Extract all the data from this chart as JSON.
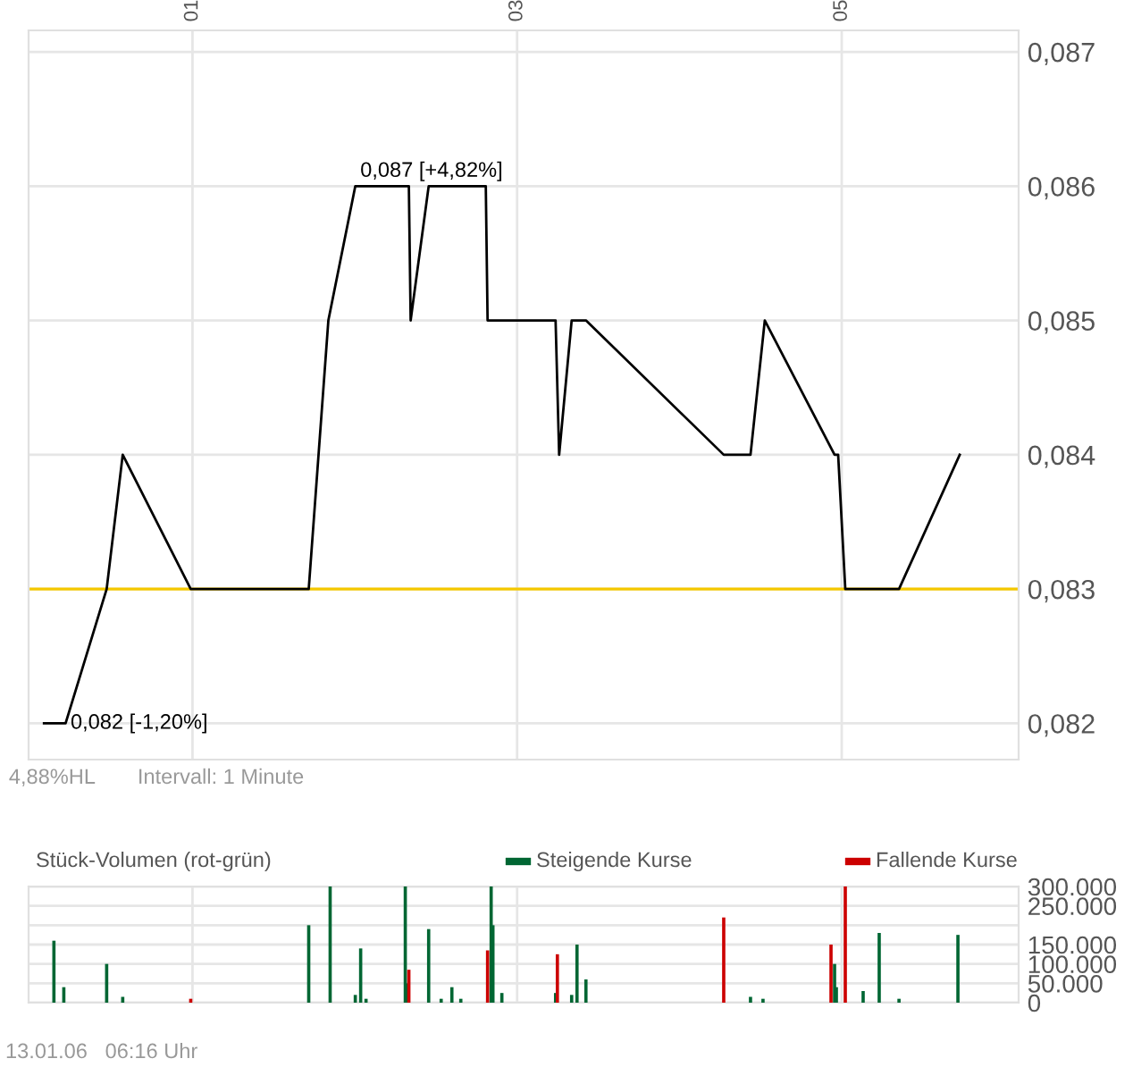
{
  "chart_data": [
    {
      "type": "line",
      "x": [
        0.085,
        0.218,
        0.471,
        0.57,
        0.989,
        1.716,
        1.837,
        2.003,
        2.333,
        2.344,
        2.455,
        2.807,
        2.818,
        3.237,
        3.259,
        3.336,
        3.424,
        4.273,
        4.438,
        4.526,
        4.956,
        4.978,
        5.022,
        5.353,
        5.727
      ],
      "series": [
        {
          "color": "#000000",
          "values": [
            0.082,
            0.082,
            0.083,
            0.084,
            0.083,
            0.083,
            0.085,
            0.086,
            0.086,
            0.085,
            0.086,
            0.086,
            0.085,
            0.085,
            0.084,
            0.085,
            0.085,
            0.084,
            0.084,
            0.085,
            0.084,
            0.084,
            0.083,
            0.083,
            0.084
          ]
        }
      ],
      "xlim": [
        -0.01,
        6.09
      ],
      "ylim": [
        0.08173,
        0.08716
      ],
      "xticks": [
        {
          "value": 1,
          "label": "01"
        },
        {
          "value": 3,
          "label": "03"
        },
        {
          "value": 5,
          "label": "05"
        }
      ],
      "yticks": [
        {
          "value": 0.082,
          "label": "0,082"
        },
        {
          "value": 0.083,
          "label": "0,083"
        },
        {
          "value": 0.084,
          "label": "0,084"
        },
        {
          "value": 0.085,
          "label": "0,085"
        },
        {
          "value": 0.086,
          "label": "0,086"
        },
        {
          "value": 0.087,
          "label": "0,087"
        }
      ],
      "ref_lines": [
        {
          "axis": "y",
          "value": 0.083,
          "color": "#f5c800"
        }
      ],
      "annotations": [
        "0,087 [+4,82%]",
        "0,082 [-1,20%]",
        "4,88%HL",
        "Intervall: 1 Minute"
      ],
      "grid": true
    },
    {
      "type": "bar",
      "title": "Stück-Volumen (rot-grün)",
      "series": [
        {
          "name": "Steigende Kurse",
          "color": "#006633",
          "x": [
            0.146,
            0.207,
            0.471,
            0.57,
            1.716,
            1.848,
            2.003,
            2.036,
            2.069,
            2.311,
            2.322,
            2.455,
            2.532,
            2.598,
            2.653,
            2.84,
            2.851,
            2.906,
            3.237,
            3.336,
            3.369,
            3.424,
            4.438,
            4.515,
            4.956,
            4.967,
            5.132,
            5.231,
            5.353,
            5.716
          ],
          "values": [
            160000,
            40000,
            100000,
            15000,
            200000,
            300000,
            20000,
            140000,
            10000,
            300000,
            50000,
            190000,
            10000,
            40000,
            10000,
            300000,
            200000,
            25000,
            25000,
            20000,
            150000,
            60000,
            15000,
            10000,
            100000,
            40000,
            30000,
            180000,
            10000,
            175000
          ]
        },
        {
          "name": "Fallende Kurse",
          "color": "#cc0000",
          "x": [
            0.989,
            2.333,
            2.818,
            3.248,
            4.273,
            4.934,
            5.022
          ],
          "values": [
            10000,
            85000,
            135000,
            125000,
            220000,
            150000,
            300000
          ]
        }
      ],
      "xlim": [
        -0.01,
        6.09
      ],
      "ylim": [
        0,
        300000
      ],
      "xticks": [
        {
          "value": 1,
          "label": null
        },
        {
          "value": 3,
          "label": null
        },
        {
          "value": 5,
          "label": null
        }
      ],
      "yticks": [
        {
          "value": 0,
          "label": "0"
        },
        {
          "value": 50000,
          "label": "50.000"
        },
        {
          "value": 100000,
          "label": "100.000"
        },
        {
          "value": 150000,
          "label": "150.000"
        },
        {
          "value": 200000,
          "label": null
        },
        {
          "value": 250000,
          "label": "250.000"
        },
        {
          "value": 300000,
          "label": "300.000"
        }
      ],
      "annotations": [
        "13.01.06   06:16 Uhr"
      ],
      "tick_labels": "y",
      "grid": true,
      "legend": "top"
    }
  ]
}
